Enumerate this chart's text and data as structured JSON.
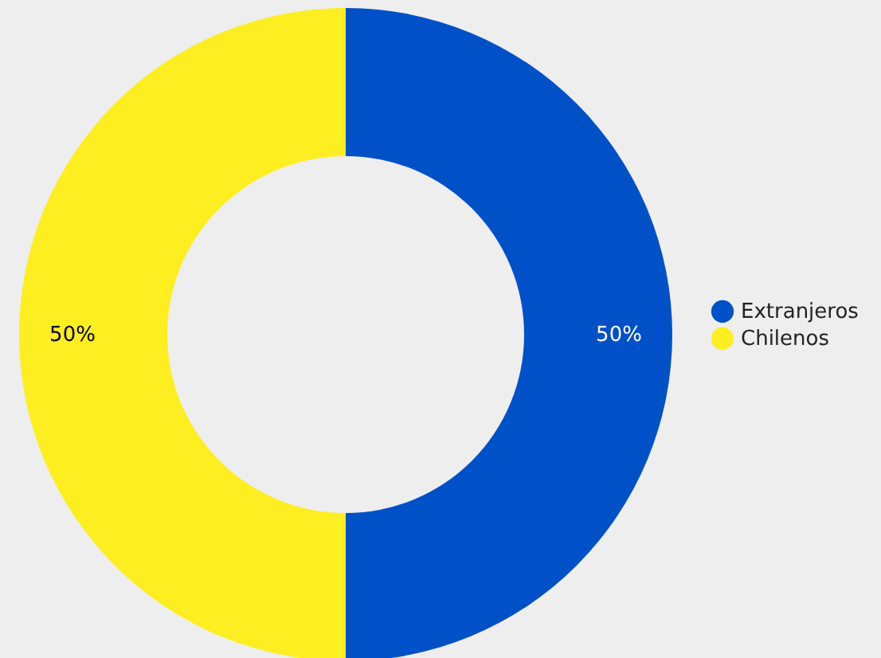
{
  "chart_data": {
    "type": "donut",
    "categories": [
      "Extranjeros",
      "Chilenos"
    ],
    "values": [
      50,
      50
    ],
    "colors": [
      "#0050c8",
      "#fdee21"
    ],
    "value_labels": [
      "50%",
      "50%"
    ],
    "legend": "right"
  }
}
